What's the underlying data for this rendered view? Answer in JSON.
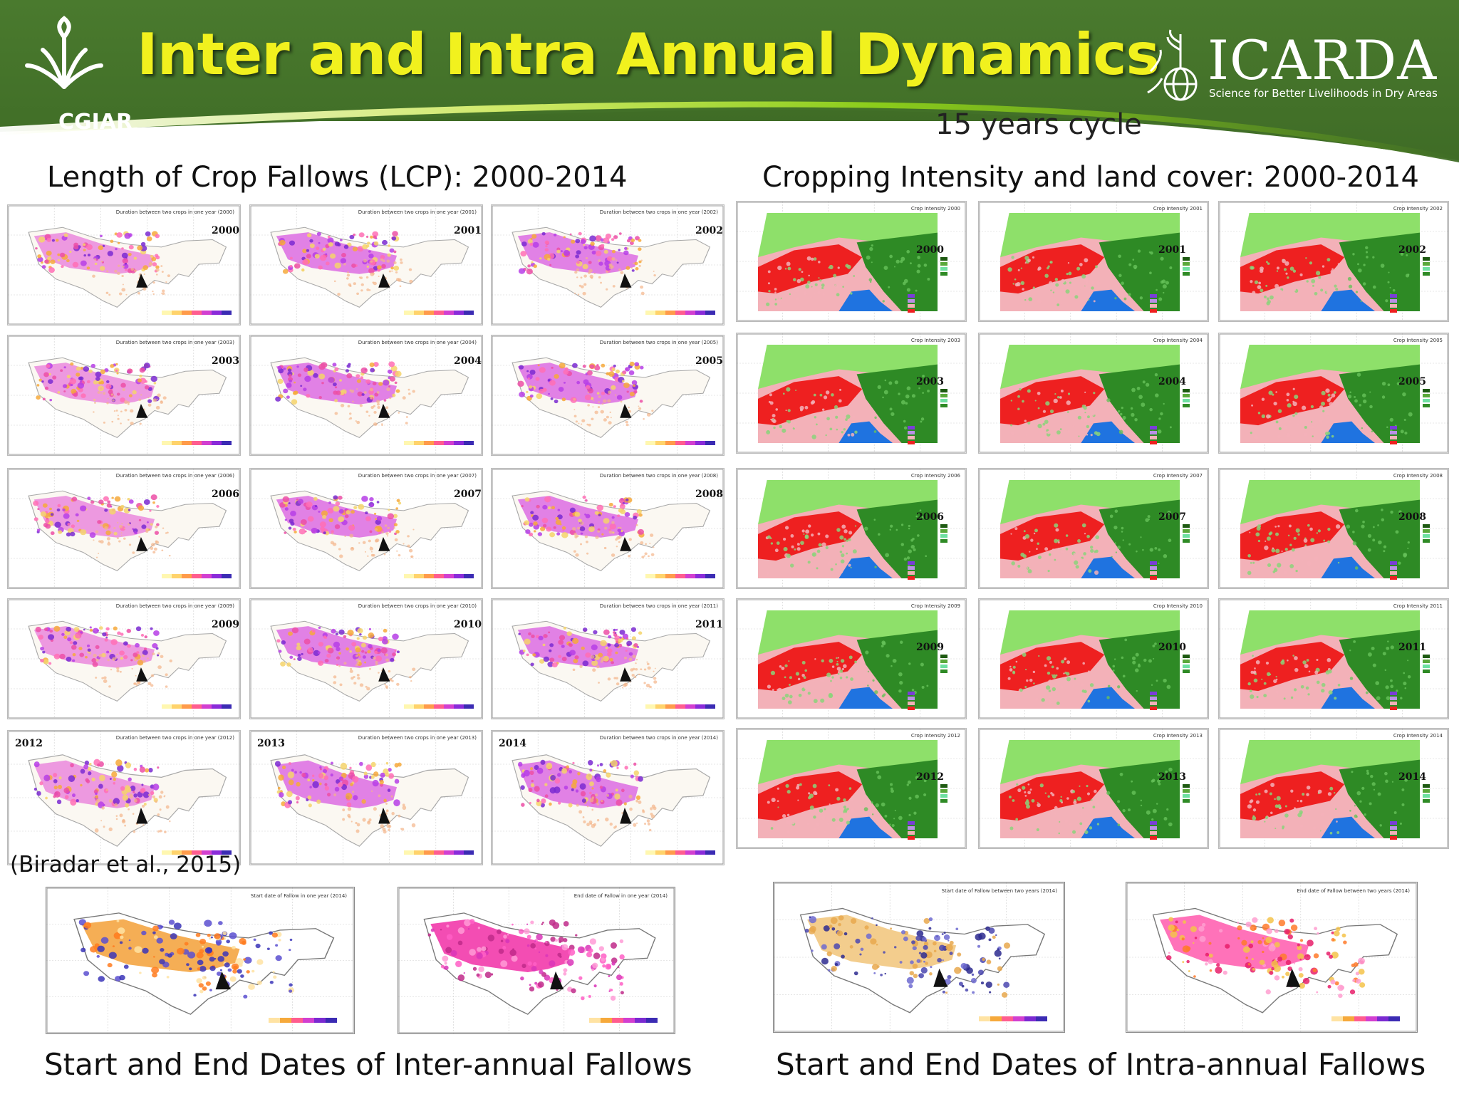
{
  "header": {
    "title": "Inter and Intra Annual Dynamics",
    "cgiar_label": "CGIAR",
    "icarda_name": "ICARDA",
    "icarda_tagline": "Science for Better Livelihoods in Dry Areas",
    "colors": {
      "band": "#4a7a2e",
      "title": "#f1f11e",
      "accent": "#8fd11a"
    }
  },
  "cycle_label": "15 years cycle",
  "left_section": {
    "title": "Length of Crop Fallows (LCP): 2000-2014",
    "panel_caption": "Duration between two crops in one year",
    "years": [
      "2000",
      "2001",
      "2002",
      "2003",
      "2004",
      "2005",
      "2006",
      "2007",
      "2008",
      "2009",
      "2010",
      "2011",
      "2012",
      "2013",
      "2014"
    ]
  },
  "right_section": {
    "title": "Cropping Intensity and land cover: 2000-2014",
    "panel_caption": "Crop Intensity",
    "years": [
      "2000",
      "2001",
      "2002",
      "2003",
      "2004",
      "2005",
      "2006",
      "2007",
      "2008",
      "2009",
      "2010",
      "2011",
      "2012",
      "2013",
      "2014"
    ]
  },
  "citation": "(Biradar et al., 2015)",
  "bottom": {
    "inter_caption": "Start and End Dates of Inter-annual Fallows",
    "intra_caption": "Start and End Dates of Intra-annual Fallows",
    "maps": [
      {
        "title": "Start date of Fallow in one year (2014)",
        "palette": "inter-start"
      },
      {
        "title": "End date of Fallow in one year (2014)",
        "palette": "inter-end"
      },
      {
        "title": "Start date of Fallow between two years (2014)",
        "palette": "intra-start"
      },
      {
        "title": "End date of Fallow between two years (2014)",
        "palette": "intra-end"
      }
    ]
  }
}
